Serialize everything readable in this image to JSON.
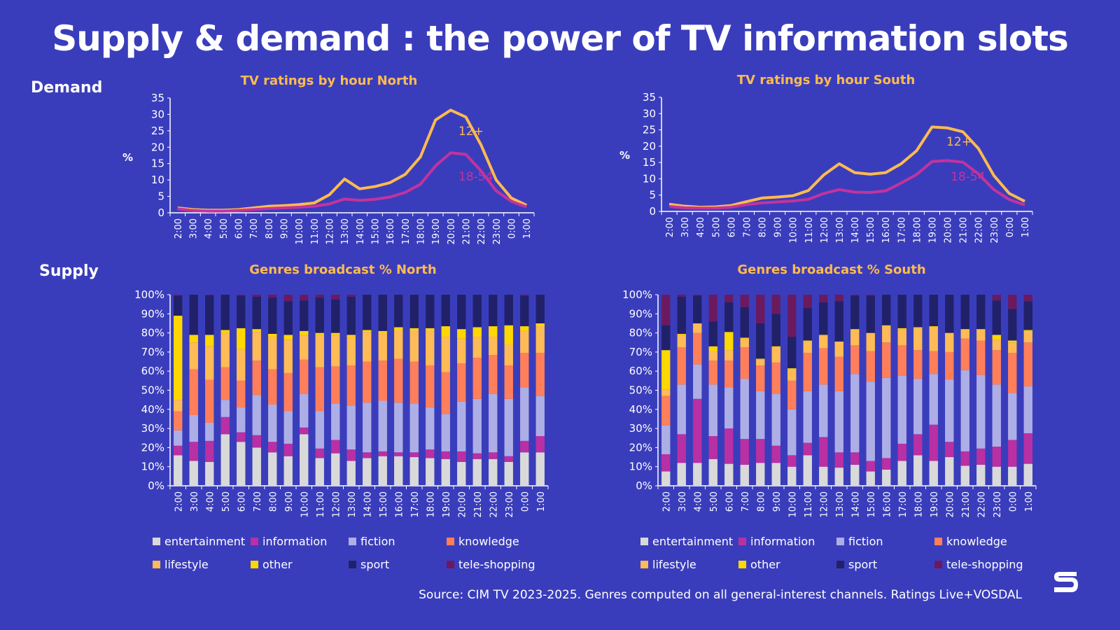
{
  "title": "Supply & demand : the power of TV information slots",
  "sections": {
    "demand": "Demand",
    "supply": "Supply"
  },
  "source": "Source: CIM TV 2023-2025. Genres computed on all general-interest channels. Ratings Live+VOSDAL",
  "logo": "S",
  "colors": {
    "background": "#3a3dbb",
    "accent": "#ffbb4f"
  },
  "hours": [
    "2:00",
    "3:00",
    "4:00",
    "5:00",
    "6:00",
    "7:00",
    "8:00",
    "9:00",
    "10:00",
    "11:00",
    "12:00",
    "13:00",
    "14:00",
    "15:00",
    "16:00",
    "17:00",
    "18:00",
    "19:00",
    "20:00",
    "21:00",
    "22:00",
    "23:00",
    "0:00",
    "1:00"
  ],
  "genres": [
    {
      "name": "entertainment",
      "color": "#d9d9d9"
    },
    {
      "name": "information",
      "color": "#b92fa4"
    },
    {
      "name": "fiction",
      "color": "#adaee6"
    },
    {
      "name": "knowledge",
      "color": "#ff7f5a"
    },
    {
      "name": "lifestyle",
      "color": "#ffbb55"
    },
    {
      "name": "other",
      "color": "#ffd700"
    },
    {
      "name": "sport",
      "color": "#21216a"
    },
    {
      "name": "tele-shopping",
      "color": "#6b1a5f"
    }
  ],
  "chart_data": [
    {
      "id": "north-ratings",
      "type": "line",
      "title": "TV ratings by hour North",
      "ylabel": "%",
      "ylim": [
        0,
        35
      ],
      "yticks": [
        "0",
        "5",
        "10",
        "15",
        "20",
        "25",
        "30",
        "35"
      ],
      "series": [
        {
          "name": "12+",
          "color": "#ffbb4f",
          "values": [
            1.5,
            1,
            0.8,
            0.8,
            1,
            1.5,
            2,
            2.2,
            2.5,
            3,
            5.5,
            10.3,
            7.3,
            8,
            9.2,
            11.7,
            17,
            28.3,
            31.3,
            29.2,
            20.7,
            10,
            4.5,
            2.3
          ]
        },
        {
          "name": "18-54",
          "color": "#c2339f",
          "values": [
            1.2,
            0.7,
            0.5,
            0.5,
            0.7,
            1,
            1.3,
            1.5,
            1.7,
            2,
            2.7,
            4.2,
            3.8,
            4.1,
            4.8,
            6.2,
            8.7,
            14.3,
            18.3,
            17.8,
            12.8,
            6.7,
            3.5,
            1.8
          ]
        }
      ]
    },
    {
      "id": "south-ratings",
      "type": "line",
      "title": "TV ratings by hour South",
      "ylabel": "%",
      "ylim": [
        0,
        35
      ],
      "yticks": [
        "0",
        "5",
        "10",
        "15",
        "20",
        "25",
        "30",
        "35"
      ],
      "series": [
        {
          "name": "12+",
          "color": "#ffbb4f",
          "values": [
            2.2,
            1.6,
            1.3,
            1.4,
            1.8,
            3,
            4.1,
            4.4,
            4.8,
            6.4,
            11.2,
            14.6,
            11.9,
            11.4,
            11.9,
            14.6,
            18.6,
            25.9,
            25.6,
            24.4,
            19.3,
            11,
            5.5,
            3.1
          ]
        },
        {
          "name": "18-54",
          "color": "#c2339f",
          "values": [
            1.5,
            1.1,
            1,
            1,
            1.3,
            2.1,
            2.6,
            2.9,
            3.2,
            3.7,
            5.5,
            6.7,
            5.9,
            5.8,
            6.3,
            8.7,
            11.3,
            15.3,
            15.6,
            15.1,
            11.5,
            6.7,
            3.6,
            2
          ]
        }
      ]
    },
    {
      "id": "north-genres",
      "type": "bar",
      "stacked": true,
      "title": "Genres broadcast % North",
      "ylim": [
        0,
        100
      ],
      "yticks": [
        "0%",
        "10%",
        "20%",
        "30%",
        "40%",
        "50%",
        "60%",
        "70%",
        "80%",
        "90%",
        "100%"
      ],
      "cumulative": [
        [
          16,
          21,
          29,
          39,
          45,
          89,
          99.5,
          100
        ],
        [
          13,
          23,
          37,
          61,
          75,
          79,
          100,
          100
        ],
        [
          12.5,
          23.5,
          33,
          55.5,
          73,
          79,
          99.7,
          100
        ],
        [
          27,
          36,
          45,
          62,
          80,
          81.5,
          100,
          100
        ],
        [
          23,
          28,
          41,
          55,
          71.5,
          82.5,
          99.5,
          100
        ],
        [
          20,
          26.5,
          47.5,
          65.5,
          80.5,
          82,
          99,
          100
        ],
        [
          17.5,
          23,
          42.5,
          61,
          78,
          79.5,
          98.5,
          100
        ],
        [
          15.5,
          22,
          39,
          59,
          76.5,
          79,
          96.5,
          100
        ],
        [
          27,
          30.5,
          48,
          66,
          79,
          81,
          97,
          100
        ],
        [
          14.5,
          19.5,
          39,
          62,
          79,
          80,
          98.5,
          100
        ],
        [
          17,
          24,
          43,
          62.5,
          79,
          80,
          97.5,
          100
        ],
        [
          13,
          19,
          42,
          63,
          78,
          79,
          99,
          100
        ],
        [
          14.5,
          17.5,
          43.5,
          65,
          80.5,
          81.5,
          100,
          100
        ],
        [
          15.5,
          18,
          44.5,
          65.5,
          80,
          81,
          100,
          100
        ],
        [
          15.5,
          17.5,
          43.5,
          66.5,
          81.5,
          83,
          100,
          100
        ],
        [
          15,
          17.5,
          43,
          65,
          81.5,
          82.5,
          100,
          100
        ],
        [
          14.5,
          19,
          41,
          63,
          81.5,
          82.5,
          100,
          100
        ],
        [
          14,
          18,
          37.5,
          59.5,
          78,
          83.5,
          100,
          100
        ],
        [
          12.5,
          18,
          44,
          64,
          77,
          82,
          100,
          100
        ],
        [
          14,
          17,
          45.5,
          67,
          78,
          83,
          100,
          100
        ],
        [
          14,
          17.5,
          48,
          68.5,
          78,
          83.5,
          100,
          100
        ],
        [
          12.5,
          15.5,
          45.5,
          63,
          74,
          84,
          100,
          100
        ],
        [
          17.5,
          23.5,
          51.5,
          69.5,
          81,
          83.5,
          99.5,
          100
        ],
        [
          17.5,
          26,
          47,
          69.5,
          83.5,
          85,
          100,
          100
        ]
      ]
    },
    {
      "id": "south-genres",
      "type": "bar",
      "stacked": true,
      "title": "Genres broadcast % South",
      "ylim": [
        0,
        100
      ],
      "yticks": [
        "0%",
        "10%",
        "20%",
        "30%",
        "40%",
        "50%",
        "60%",
        "70%",
        "80%",
        "90%",
        "100%"
      ],
      "cumulative": [
        [
          7.5,
          16.5,
          31.5,
          47,
          50.5,
          71,
          84,
          100
        ],
        [
          12,
          27,
          53,
          72.5,
          79,
          79.5,
          99,
          100
        ],
        [
          12,
          45.5,
          63.5,
          80,
          85,
          85,
          99.5,
          100
        ],
        [
          14,
          26,
          53,
          65.5,
          70.5,
          73,
          86,
          100
        ],
        [
          11.5,
          30,
          51.5,
          65.5,
          71,
          80.5,
          96,
          100
        ],
        [
          11,
          24.5,
          56,
          72.5,
          77,
          77.5,
          93.5,
          100
        ],
        [
          12,
          24.5,
          49.5,
          63,
          66,
          66.5,
          85,
          100
        ],
        [
          12,
          21,
          48,
          64.5,
          72.5,
          73,
          90,
          100
        ],
        [
          10,
          16,
          40,
          55,
          61,
          61.5,
          78,
          100
        ],
        [
          16,
          22.5,
          49.5,
          69.5,
          75.5,
          76,
          93,
          100
        ],
        [
          10,
          25.5,
          53,
          72,
          78.5,
          79,
          96,
          100
        ],
        [
          9.5,
          17.5,
          49.5,
          67.5,
          75.5,
          75.5,
          96.5,
          100
        ],
        [
          11,
          17.5,
          58.5,
          73.5,
          81.5,
          82,
          99.5,
          100
        ],
        [
          7.5,
          13,
          54.5,
          70.5,
          80,
          80,
          99.5,
          100
        ],
        [
          8.5,
          14.5,
          56.5,
          75,
          83.5,
          84,
          100,
          100
        ],
        [
          13,
          22,
          57.5,
          73.5,
          82,
          82.5,
          100,
          100
        ],
        [
          16,
          27,
          56,
          71,
          82.5,
          83,
          100,
          100
        ],
        [
          13,
          32,
          58.5,
          70.5,
          83,
          83.5,
          100,
          100
        ],
        [
          15,
          23,
          55.5,
          70,
          79.5,
          80,
          100,
          100
        ],
        [
          10.5,
          18,
          60.5,
          77,
          81.5,
          82,
          100,
          100
        ],
        [
          11,
          19.5,
          58,
          76,
          81.5,
          82,
          100,
          100
        ],
        [
          10,
          20.5,
          53,
          71,
          76.5,
          79,
          97,
          100
        ],
        [
          10,
          24,
          48.5,
          69.5,
          75,
          76,
          92.5,
          100
        ],
        [
          11.5,
          27.5,
          52,
          75,
          81,
          81.5,
          96.5,
          100
        ]
      ]
    }
  ]
}
